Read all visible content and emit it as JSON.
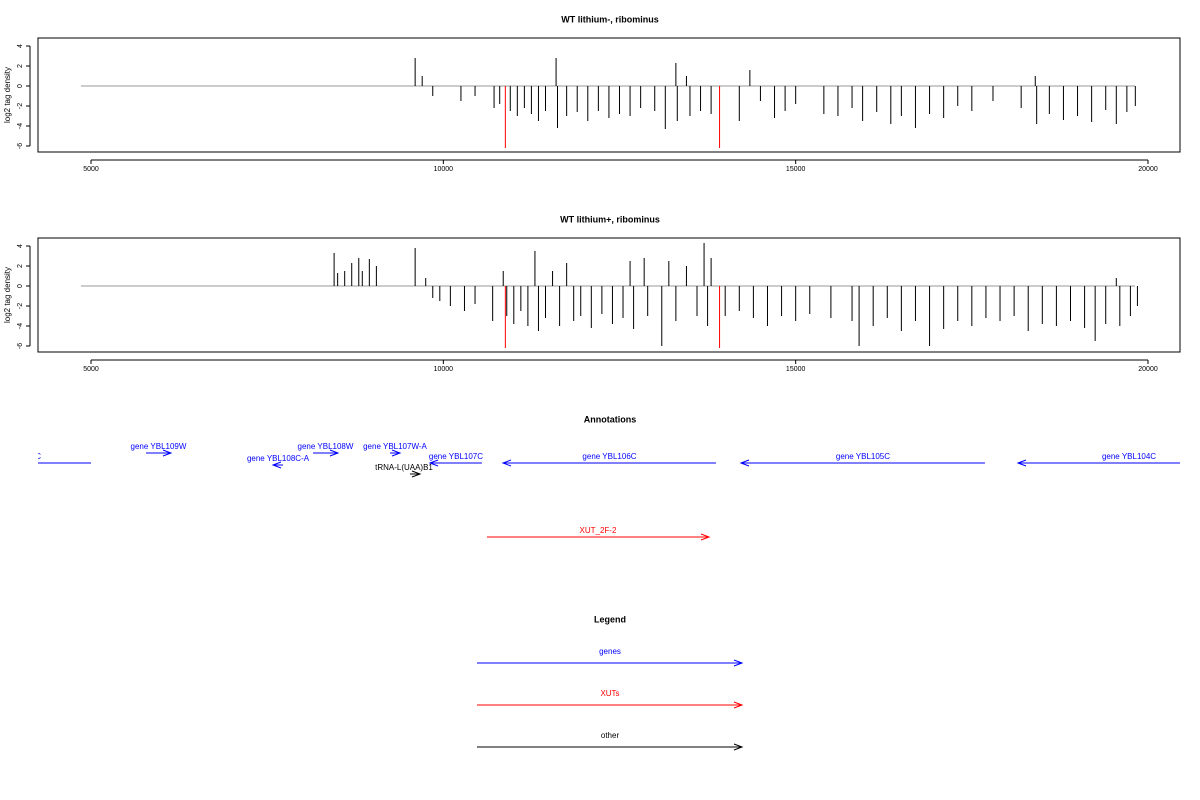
{
  "chart_data": [
    {
      "type": "bar",
      "title": "WT lithium-, ribominus",
      "y_label": "log2 tag density",
      "xlim": [
        4248,
        20454
      ],
      "ylim": [
        -6.6,
        4.8
      ],
      "xticks": [
        5000,
        10000,
        15000,
        20000
      ],
      "yticks": [
        -6,
        -4,
        -2,
        0,
        2,
        4
      ],
      "series": [
        {
          "color": "#000000",
          "x": [
            9600,
            9700,
            9850,
            10250,
            10450,
            10720,
            10800,
            10950,
            11050,
            11150,
            11250,
            11350,
            11450,
            11600,
            11620,
            11750,
            11900,
            12050,
            12200,
            12350,
            12500,
            12650,
            12800,
            13000,
            13150,
            13300,
            13320,
            13450,
            13500,
            13650,
            13800,
            14200,
            14350,
            14500,
            14700,
            14850,
            15000,
            15400,
            15600,
            15800,
            15950,
            16150,
            16350,
            16500,
            16700,
            16900,
            17100,
            17300,
            17500,
            17800,
            18200,
            18400,
            18420,
            18600,
            18800,
            19000,
            19200,
            19400,
            19550,
            19700,
            19820
          ],
          "values": [
            2.8,
            1.0,
            -1.0,
            -1.5,
            -1.0,
            -2.2,
            -1.8,
            -2.5,
            -3.0,
            -2.2,
            -2.8,
            -3.5,
            -2.5,
            2.8,
            -4.2,
            -3.0,
            -2.6,
            -3.5,
            -2.5,
            -3.2,
            -2.8,
            -3.0,
            -2.2,
            -2.5,
            -4.3,
            2.3,
            -3.5,
            1.0,
            -3.0,
            -2.5,
            -2.8,
            -3.5,
            1.6,
            -1.5,
            -3.2,
            -2.5,
            -1.8,
            -2.8,
            -3.0,
            -2.2,
            -3.5,
            -2.6,
            -3.8,
            -3.0,
            -4.2,
            -2.8,
            -3.2,
            -2.0,
            -2.5,
            -1.5,
            -2.2,
            1.0,
            -3.8,
            -2.8,
            -3.4,
            -3.0,
            -3.6,
            -2.4,
            -3.8,
            -2.6,
            -2.0
          ]
        },
        {
          "color": "#ff0000",
          "x": [
            10880,
            13920
          ],
          "values": [
            -6.2,
            -6.2
          ]
        }
      ]
    },
    {
      "type": "bar",
      "title": "WT lithium+, ribominus",
      "y_label": "log2 tag density",
      "xlim": [
        4248,
        20454
      ],
      "ylim": [
        -6.6,
        4.8
      ],
      "xticks": [
        5000,
        10000,
        15000,
        20000
      ],
      "yticks": [
        -6,
        -4,
        -2,
        0,
        2,
        4
      ],
      "series": [
        {
          "color": "#000000",
          "x": [
            8450,
            8500,
            8600,
            8700,
            8800,
            8850,
            8950,
            9050,
            9600,
            9750,
            9850,
            9950,
            10100,
            10300,
            10450,
            10700,
            10850,
            10900,
            11000,
            11100,
            11200,
            11300,
            11350,
            11450,
            11550,
            11650,
            11750,
            11850,
            11950,
            12100,
            12250,
            12400,
            12550,
            12650,
            12700,
            12850,
            12900,
            13100,
            13200,
            13300,
            13450,
            13600,
            13700,
            13750,
            13800,
            14000,
            14200,
            14400,
            14600,
            14800,
            15000,
            15200,
            15500,
            15800,
            15900,
            16100,
            16300,
            16500,
            16700,
            16900,
            17100,
            17300,
            17500,
            17700,
            17900,
            18100,
            18300,
            18500,
            18700,
            18900,
            19100,
            19250,
            19400,
            19550,
            19600,
            19750,
            19850
          ],
          "values": [
            3.3,
            1.3,
            1.5,
            2.3,
            2.8,
            1.5,
            2.7,
            2.0,
            3.8,
            0.8,
            -1.2,
            -1.5,
            -2.0,
            -2.5,
            -1.8,
            -3.5,
            1.5,
            -3.0,
            -3.8,
            -2.5,
            -4.0,
            3.5,
            -4.5,
            -3.2,
            1.5,
            -4.0,
            2.3,
            -3.5,
            -3.0,
            -4.2,
            -2.8,
            -3.8,
            -3.2,
            2.5,
            -4.3,
            2.8,
            -3.0,
            -6.0,
            2.5,
            -3.5,
            2.0,
            -3.0,
            4.3,
            -4.0,
            2.8,
            -3.0,
            -2.5,
            -3.2,
            -4.0,
            -3.0,
            -3.5,
            -2.8,
            -3.2,
            -3.5,
            -6.0,
            -4.0,
            -3.2,
            -4.5,
            -3.5,
            -6.0,
            -4.3,
            -3.5,
            -4.0,
            -3.2,
            -3.5,
            -3.0,
            -4.5,
            -3.8,
            -4.0,
            -3.5,
            -4.2,
            -5.5,
            -3.8,
            0.8,
            -4.0,
            -3.0,
            -2.0
          ]
        },
        {
          "color": "#ff0000",
          "x": [
            10880,
            13920
          ],
          "values": [
            -6.2,
            -6.2
          ]
        }
      ]
    }
  ],
  "annotations": {
    "title": "Annotations",
    "xlim": [
      4248,
      20454
    ],
    "features": [
      {
        "label": "C",
        "start": 3500,
        "end": 5000,
        "strand": "-",
        "color": "#0000ff"
      },
      {
        "label": "gene YBL109W",
        "start": 5781,
        "end": 6135,
        "strand": "+",
        "color": "#0000ff"
      },
      {
        "label": "gene YBL108C-A",
        "start": 7583,
        "end": 7725,
        "strand": "-",
        "color": "#0000ff"
      },
      {
        "label": "gene YBL108W",
        "start": 8150,
        "end": 8505,
        "strand": "+",
        "color": "#0000ff"
      },
      {
        "label": "gene YBL107W-A",
        "start": 9243,
        "end": 9385,
        "strand": "+",
        "color": "#0000ff"
      },
      {
        "label": "gene YBL107C",
        "start": 9811,
        "end": 10548,
        "strand": "-",
        "color": "#0000ff"
      },
      {
        "label": "tRNA-L(UAA)B1",
        "start": 9527,
        "end": 9669,
        "strand": "+",
        "color": "#000000"
      },
      {
        "label": "gene YBL106C",
        "start": 10847,
        "end": 13869,
        "strand": "-",
        "color": "#0000ff"
      },
      {
        "label": "gene YBL105C",
        "start": 14224,
        "end": 17686,
        "strand": "-",
        "color": "#0000ff"
      },
      {
        "label": "gene YBL104C",
        "start": 18155,
        "end": 21306,
        "strand": "-",
        "color": "#0000ff"
      },
      {
        "label": "XUT_2F-2",
        "start": 10619,
        "end": 13770,
        "strand": "+",
        "color": "#ff0000"
      }
    ]
  },
  "legend": {
    "title": "Legend",
    "items": [
      {
        "label": "genes",
        "color": "#0000ff"
      },
      {
        "label": "XUTs",
        "color": "#ff0000"
      },
      {
        "label": "other",
        "color": "#000000"
      }
    ]
  }
}
